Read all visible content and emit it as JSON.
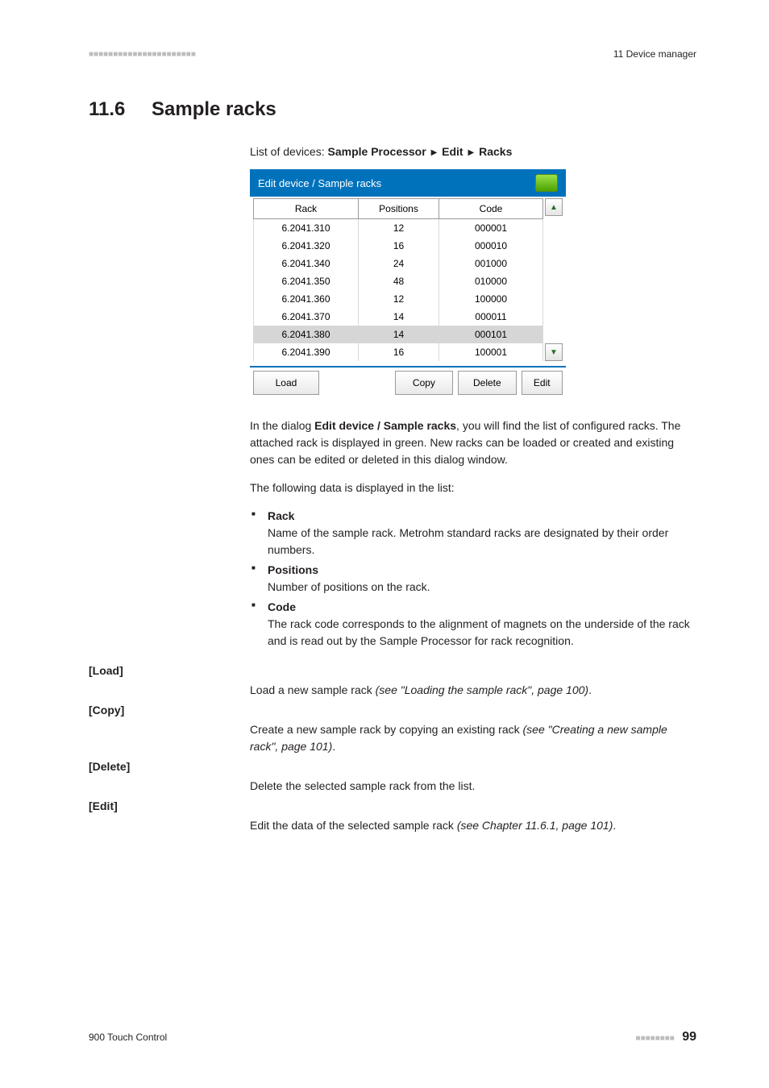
{
  "runningHead": {
    "leftDots": "■■■■■■■■■■■■■■■■■■■■■■",
    "right": "11 Device manager"
  },
  "heading": {
    "number": "11.6",
    "title": "Sample racks"
  },
  "breadcrumb": {
    "prefix": "List of devices: ",
    "part1": "Sample Processor",
    "part2": "Edit",
    "part3": "Racks"
  },
  "dialog": {
    "title": "Edit device / Sample racks",
    "columns": [
      "Rack",
      "Positions",
      "Code"
    ],
    "rows": [
      {
        "rack": "6.2041.310",
        "positions": "12",
        "code": "000001",
        "selected": false
      },
      {
        "rack": "6.2041.320",
        "positions": "16",
        "code": "000010",
        "selected": false
      },
      {
        "rack": "6.2041.340",
        "positions": "24",
        "code": "001000",
        "selected": false
      },
      {
        "rack": "6.2041.350",
        "positions": "48",
        "code": "010000",
        "selected": false
      },
      {
        "rack": "6.2041.360",
        "positions": "12",
        "code": "100000",
        "selected": false
      },
      {
        "rack": "6.2041.370",
        "positions": "14",
        "code": "000011",
        "selected": false
      },
      {
        "rack": "6.2041.380",
        "positions": "14",
        "code": "000101",
        "selected": true
      },
      {
        "rack": "6.2041.390",
        "positions": "16",
        "code": "100001",
        "selected": false
      }
    ],
    "buttons": {
      "load": "Load",
      "copy": "Copy",
      "delete": "Delete",
      "edit": "Edit"
    }
  },
  "paragraphs": {
    "intro1a": "In the dialog ",
    "intro1bold": "Edit device / Sample racks",
    "intro1b": ", you will find the list of configured racks. The attached rack is displayed in green. New racks can be loaded or created and existing ones can be edited or deleted in this dialog window.",
    "intro2": "The following data is displayed in the list:"
  },
  "listItems": [
    {
      "term": "Rack",
      "desc": "Name of the sample rack. Metrohm standard racks are designated by their order numbers."
    },
    {
      "term": "Positions",
      "desc": "Number of positions on the rack."
    },
    {
      "term": "Code",
      "desc": "The rack code corresponds to the alignment of magnets on the underside of the rack and is read out by the Sample Processor for rack recognition."
    }
  ],
  "defs": {
    "load": {
      "label": "[Load]",
      "text": "Load a new sample rack ",
      "ital": "(see \"Loading the sample rack\", page 100)",
      "tail": "."
    },
    "copy": {
      "label": "[Copy]",
      "text": "Create a new sample rack by copying an existing rack ",
      "ital": "(see \"Creating a new sample rack\", page 101)",
      "tail": "."
    },
    "delete": {
      "label": "[Delete]",
      "text": "Delete the selected sample rack from the list.",
      "ital": "",
      "tail": ""
    },
    "edit": {
      "label": "[Edit]",
      "text": "Edit the data of the selected sample rack ",
      "ital": "(see Chapter 11.6.1, page 101)",
      "tail": "."
    }
  },
  "footer": {
    "left": "900 Touch Control",
    "dots": "■■■■■■■■",
    "page": "99"
  }
}
